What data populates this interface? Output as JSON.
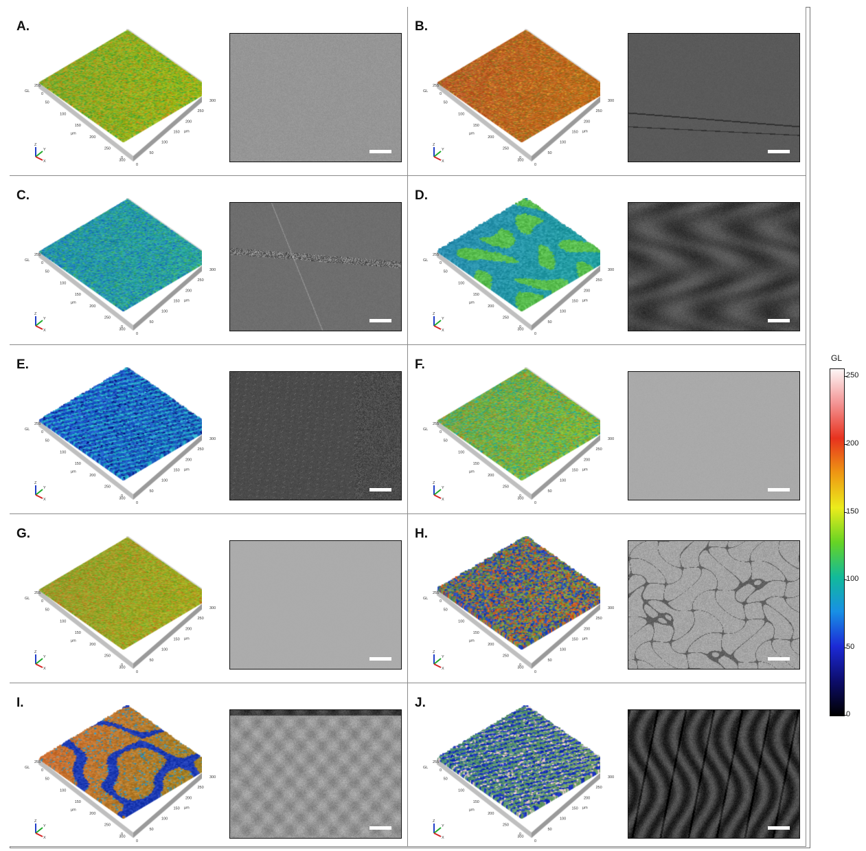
{
  "panels": [
    {
      "label": "A.",
      "surface": {
        "base": [
          150,
          176,
          32
        ],
        "var": [
          [
            212,
            140,
            30
          ],
          [
            60,
            170,
            60
          ]
        ],
        "noise": "fine",
        "rough": 0.05
      }
    },
    {
      "label": "B.",
      "surface": {
        "base": [
          190,
          95,
          35
        ],
        "var": [
          [
            220,
            150,
            40
          ],
          [
            140,
            120,
            40
          ]
        ],
        "noise": "fine",
        "rough": 0.05
      }
    },
    {
      "label": "C.",
      "surface": {
        "base": [
          40,
          160,
          165
        ],
        "var": [
          [
            70,
            180,
            90
          ],
          [
            30,
            110,
            200
          ]
        ],
        "noise": "fine",
        "rough": 0.1
      }
    },
    {
      "label": "D.",
      "surface": {
        "base": [
          40,
          150,
          170
        ],
        "var": [
          [
            20,
            40,
            170
          ],
          [
            90,
            190,
            80
          ]
        ],
        "noise": "blotch",
        "rough": 0.6
      }
    },
    {
      "label": "E.",
      "surface": {
        "base": [
          30,
          90,
          200
        ],
        "var": [
          [
            15,
            30,
            140
          ],
          [
            40,
            170,
            200
          ]
        ],
        "noise": "ridges",
        "rough": 0.5
      }
    },
    {
      "label": "F.",
      "surface": {
        "base": [
          120,
          180,
          60
        ],
        "var": [
          [
            200,
            130,
            40
          ],
          [
            30,
            170,
            160
          ]
        ],
        "noise": "fine",
        "rough": 0.05
      }
    },
    {
      "label": "G.",
      "surface": {
        "base": [
          160,
          165,
          40
        ],
        "var": [
          [
            205,
            120,
            35
          ],
          [
            110,
            175,
            45
          ]
        ],
        "noise": "fine",
        "rough": 0.05
      }
    },
    {
      "label": "H.",
      "surface": {
        "base": [
          110,
          150,
          70
        ],
        "var": [
          [
            215,
            90,
            30
          ],
          [
            30,
            70,
            190
          ]
        ],
        "noise": "spiky",
        "rough": 0.7
      }
    },
    {
      "label": "I.",
      "surface": {
        "base": [
          190,
          120,
          45
        ],
        "var": [
          [
            40,
            150,
            200
          ],
          [
            30,
            60,
            180
          ]
        ],
        "noise": "swirl",
        "rough": 0.5
      }
    },
    {
      "label": "J.",
      "surface": {
        "base": [
          90,
          150,
          110
        ],
        "var": [
          [
            230,
            200,
            200
          ],
          [
            25,
            50,
            190
          ]
        ],
        "noise": "ridges",
        "rough": 0.7
      }
    }
  ],
  "sem_styles": [
    {
      "tone": [
        150,
        150,
        150
      ],
      "contrast": 14,
      "pattern": "grain"
    },
    {
      "tone": [
        90,
        90,
        90
      ],
      "contrast": 8,
      "pattern": "scratch"
    },
    {
      "tone": [
        110,
        110,
        110
      ],
      "contrast": 10,
      "pattern": "groove"
    },
    {
      "tone": [
        70,
        70,
        70
      ],
      "contrast": 22,
      "pattern": "blobs"
    },
    {
      "tone": [
        75,
        75,
        75
      ],
      "contrast": 18,
      "pattern": "dots"
    },
    {
      "tone": [
        170,
        170,
        170
      ],
      "contrast": 4,
      "pattern": "flat"
    },
    {
      "tone": [
        172,
        172,
        172
      ],
      "contrast": 3,
      "pattern": "flat"
    },
    {
      "tone": [
        165,
        165,
        165
      ],
      "contrast": 30,
      "pattern": "cells"
    },
    {
      "tone": [
        150,
        150,
        150
      ],
      "contrast": 30,
      "pattern": "cloudy"
    },
    {
      "tone": [
        55,
        55,
        55
      ],
      "contrast": 30,
      "pattern": "vertical"
    }
  ],
  "axes": {
    "z_label": "GL",
    "z_tick": "255",
    "z_zero": "0",
    "unit": "µm",
    "ticks": [
      "50",
      "100",
      "150",
      "200",
      "250",
      "300"
    ],
    "zero": "0",
    "axis_letters": [
      "Z",
      "Y",
      "X"
    ]
  },
  "colorbar": {
    "title": "GL",
    "ticks": [
      "250",
      "200",
      "150",
      "100",
      "50",
      "0"
    ],
    "colors": {
      "top": "#fdf6f6",
      "bottom": "#000000"
    }
  }
}
